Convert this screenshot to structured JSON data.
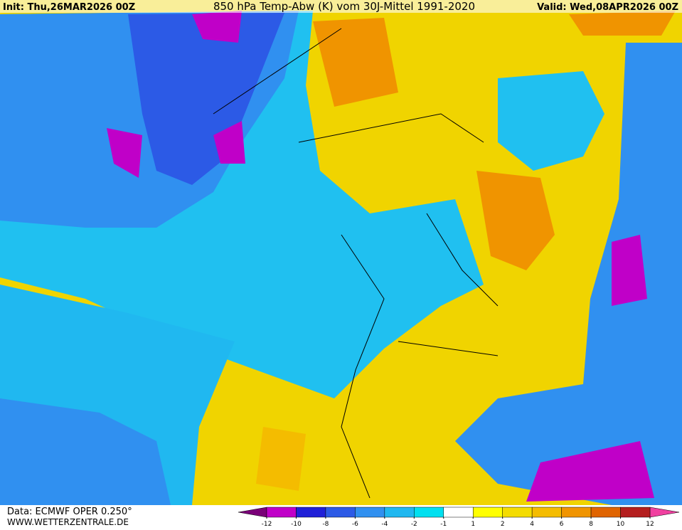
{
  "header": {
    "init": "Init: Thu,26MAR2026 00Z",
    "title": "850 hPa Temp-Abw (K) vom 30J-Mittel 1991-2020",
    "valid": "Valid: Wed,08APR2026 00Z"
  },
  "footer": {
    "source": "Data: ECMWF OPER 0.250°",
    "website": "WWW.WETTERZENTRALE.DE"
  },
  "colorbar": {
    "ticks": [
      -12,
      -10,
      -8,
      -6,
      -4,
      -2,
      -1,
      1,
      2,
      4,
      6,
      8,
      10,
      12
    ],
    "colors": [
      "#c000c8",
      "#2020d8",
      "#2c5ae6",
      "#3090f0",
      "#20b8f0",
      "#00e0f0",
      "#ffffff",
      "#ffff00",
      "#f4dc00",
      "#f4bc00",
      "#f09400",
      "#e06400",
      "#b41e1e"
    ],
    "under_color": "#7a0078",
    "over_color": "#f040a0"
  }
}
